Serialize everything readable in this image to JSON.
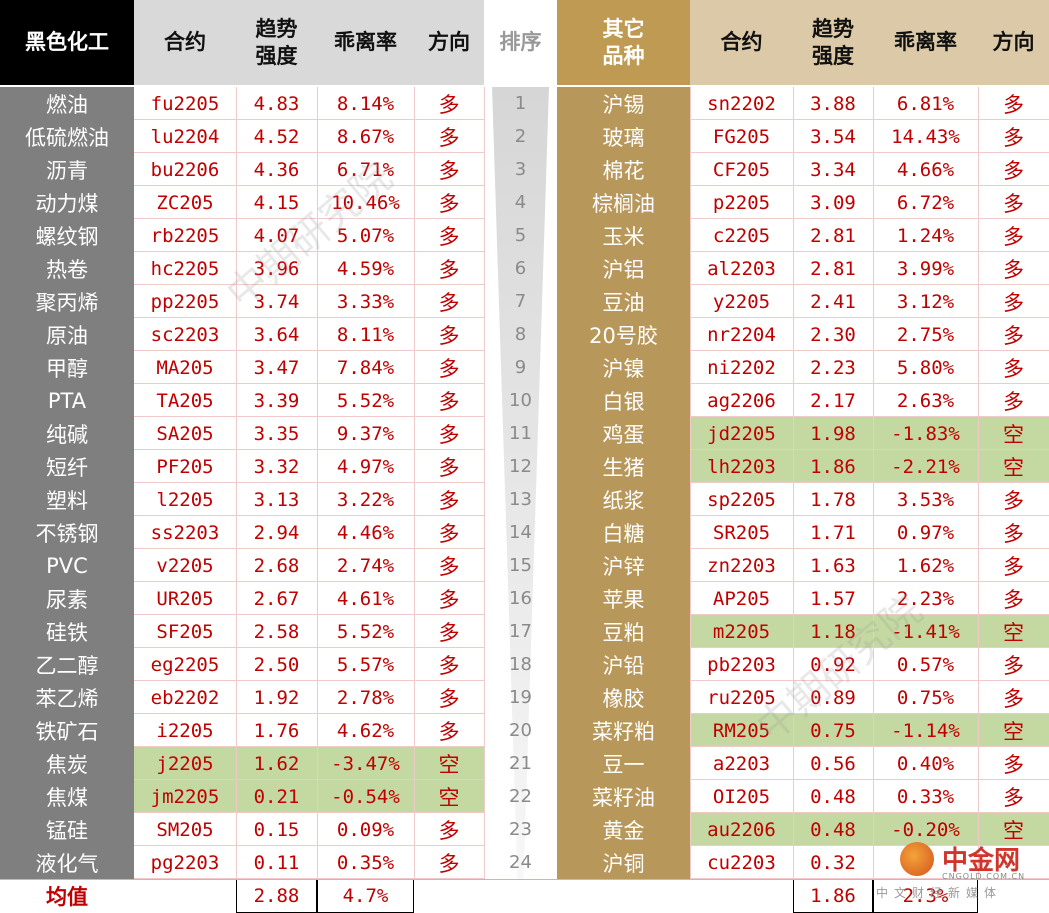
{
  "header": {
    "black_group": "黑色化工",
    "contract": "合约",
    "trend_strength": "趋势\n强度",
    "deviation": "乖离率",
    "direction": "方向",
    "rank": "排序",
    "other_group": "其它\n品种"
  },
  "left_rows": [
    {
      "name": "燃油",
      "code": "fu2205",
      "strength": "4.83",
      "deviation": "8.14%",
      "dir": "多"
    },
    {
      "name": "低硫燃油",
      "code": "lu2204",
      "strength": "4.52",
      "deviation": "8.67%",
      "dir": "多"
    },
    {
      "name": "沥青",
      "code": "bu2206",
      "strength": "4.36",
      "deviation": "6.71%",
      "dir": "多"
    },
    {
      "name": "动力煤",
      "code": "ZC205",
      "strength": "4.15",
      "deviation": "10.46%",
      "dir": "多"
    },
    {
      "name": "螺纹钢",
      "code": "rb2205",
      "strength": "4.07",
      "deviation": "5.07%",
      "dir": "多"
    },
    {
      "name": "热卷",
      "code": "hc2205",
      "strength": "3.96",
      "deviation": "4.59%",
      "dir": "多"
    },
    {
      "name": "聚丙烯",
      "code": "pp2205",
      "strength": "3.74",
      "deviation": "3.33%",
      "dir": "多"
    },
    {
      "name": "原油",
      "code": "sc2203",
      "strength": "3.64",
      "deviation": "8.11%",
      "dir": "多"
    },
    {
      "name": "甲醇",
      "code": "MA205",
      "strength": "3.47",
      "deviation": "7.84%",
      "dir": "多"
    },
    {
      "name": "PTA",
      "code": "TA205",
      "strength": "3.39",
      "deviation": "5.52%",
      "dir": "多"
    },
    {
      "name": "纯碱",
      "code": "SA205",
      "strength": "3.35",
      "deviation": "9.37%",
      "dir": "多"
    },
    {
      "name": "短纤",
      "code": "PF205",
      "strength": "3.32",
      "deviation": "4.97%",
      "dir": "多"
    },
    {
      "name": "塑料",
      "code": "l2205",
      "strength": "3.13",
      "deviation": "3.22%",
      "dir": "多"
    },
    {
      "name": "不锈钢",
      "code": "ss2203",
      "strength": "2.94",
      "deviation": "4.46%",
      "dir": "多"
    },
    {
      "name": "PVC",
      "code": "v2205",
      "strength": "2.68",
      "deviation": "2.74%",
      "dir": "多"
    },
    {
      "name": "尿素",
      "code": "UR205",
      "strength": "2.67",
      "deviation": "4.61%",
      "dir": "多"
    },
    {
      "name": "硅铁",
      "code": "SF205",
      "strength": "2.58",
      "deviation": "5.52%",
      "dir": "多"
    },
    {
      "name": "乙二醇",
      "code": "eg2205",
      "strength": "2.50",
      "deviation": "5.57%",
      "dir": "多"
    },
    {
      "name": "苯乙烯",
      "code": "eb2202",
      "strength": "1.92",
      "deviation": "2.78%",
      "dir": "多"
    },
    {
      "name": "铁矿石",
      "code": "i2205",
      "strength": "1.76",
      "deviation": "4.62%",
      "dir": "多"
    },
    {
      "name": "焦炭",
      "code": "j2205",
      "strength": "1.62",
      "deviation": "-3.47%",
      "dir": "空"
    },
    {
      "name": "焦煤",
      "code": "jm2205",
      "strength": "0.21",
      "deviation": "-0.54%",
      "dir": "空"
    },
    {
      "name": "锰硅",
      "code": "SM205",
      "strength": "0.15",
      "deviation": "0.09%",
      "dir": "多"
    },
    {
      "name": "液化气",
      "code": "pg2203",
      "strength": "0.11",
      "deviation": "0.35%",
      "dir": "多"
    }
  ],
  "ranks": [
    "1",
    "2",
    "3",
    "4",
    "5",
    "6",
    "7",
    "8",
    "9",
    "10",
    "11",
    "12",
    "13",
    "14",
    "15",
    "16",
    "17",
    "18",
    "19",
    "20",
    "21",
    "22",
    "23",
    "24"
  ],
  "right_rows": [
    {
      "name": "沪锡",
      "code": "sn2202",
      "strength": "3.88",
      "deviation": "6.81%",
      "dir": "多"
    },
    {
      "name": "玻璃",
      "code": "FG205",
      "strength": "3.54",
      "deviation": "14.43%",
      "dir": "多"
    },
    {
      "name": "棉花",
      "code": "CF205",
      "strength": "3.34",
      "deviation": "4.66%",
      "dir": "多"
    },
    {
      "name": "棕榈油",
      "code": "p2205",
      "strength": "3.09",
      "deviation": "6.72%",
      "dir": "多"
    },
    {
      "name": "玉米",
      "code": "c2205",
      "strength": "2.81",
      "deviation": "1.24%",
      "dir": "多"
    },
    {
      "name": "沪铝",
      "code": "al2203",
      "strength": "2.81",
      "deviation": "3.99%",
      "dir": "多"
    },
    {
      "name": "豆油",
      "code": "y2205",
      "strength": "2.41",
      "deviation": "3.12%",
      "dir": "多"
    },
    {
      "name": "20号胶",
      "code": "nr2204",
      "strength": "2.30",
      "deviation": "2.75%",
      "dir": "多"
    },
    {
      "name": "沪镍",
      "code": "ni2202",
      "strength": "2.23",
      "deviation": "5.80%",
      "dir": "多"
    },
    {
      "name": "白银",
      "code": "ag2206",
      "strength": "2.17",
      "deviation": "2.63%",
      "dir": "多"
    },
    {
      "name": "鸡蛋",
      "code": "jd2205",
      "strength": "1.98",
      "deviation": "-1.83%",
      "dir": "空"
    },
    {
      "name": "生猪",
      "code": "lh2203",
      "strength": "1.86",
      "deviation": "-2.21%",
      "dir": "空"
    },
    {
      "name": "纸浆",
      "code": "sp2205",
      "strength": "1.78",
      "deviation": "3.53%",
      "dir": "多"
    },
    {
      "name": "白糖",
      "code": "SR205",
      "strength": "1.71",
      "deviation": "0.97%",
      "dir": "多"
    },
    {
      "name": "沪锌",
      "code": "zn2203",
      "strength": "1.63",
      "deviation": "1.62%",
      "dir": "多"
    },
    {
      "name": "苹果",
      "code": "AP205",
      "strength": "1.57",
      "deviation": "2.23%",
      "dir": "多"
    },
    {
      "name": "豆粕",
      "code": "m2205",
      "strength": "1.18",
      "deviation": "-1.41%",
      "dir": "空"
    },
    {
      "name": "沪铅",
      "code": "pb2203",
      "strength": "0.92",
      "deviation": "0.57%",
      "dir": "多"
    },
    {
      "name": "橡胶",
      "code": "ru2205",
      "strength": "0.89",
      "deviation": "0.75%",
      "dir": "多"
    },
    {
      "name": "菜籽粕",
      "code": "RM205",
      "strength": "0.75",
      "deviation": "-1.14%",
      "dir": "空"
    },
    {
      "name": "豆一",
      "code": "a2203",
      "strength": "0.56",
      "deviation": "0.40%",
      "dir": "多"
    },
    {
      "name": "菜籽油",
      "code": "OI205",
      "strength": "0.48",
      "deviation": "0.33%",
      "dir": "多"
    },
    {
      "name": "黄金",
      "code": "au2206",
      "strength": "0.48",
      "deviation": "-0.20%",
      "dir": "空"
    },
    {
      "name": "沪铜",
      "code": "cu2203",
      "strength": "0.32",
      "deviation": "",
      "dir": ""
    }
  ],
  "average": {
    "label": "均值",
    "left_strength": "2.88",
    "left_deviation": "4.7%",
    "right_strength": "1.86",
    "right_deviation": "2.3%"
  },
  "watermark": "中期研究院",
  "logo": {
    "brand": "中金网",
    "site": "CNGOLD.COM.CN",
    "tagline": "中文财经新媒体"
  },
  "colors": {
    "black_header_bg": "#000000",
    "left_name_bg": "#7f7f7f",
    "gray_header_bg": "#d9d9d9",
    "gold_header_bg": "#bf9a52",
    "gold_name_bg": "#b8975a",
    "tan_header_bg": "#dcc9a7",
    "short_highlight": "#c4d9a2",
    "value_red": "#c00000",
    "rank_gradient_top": "#d6d6d6"
  }
}
